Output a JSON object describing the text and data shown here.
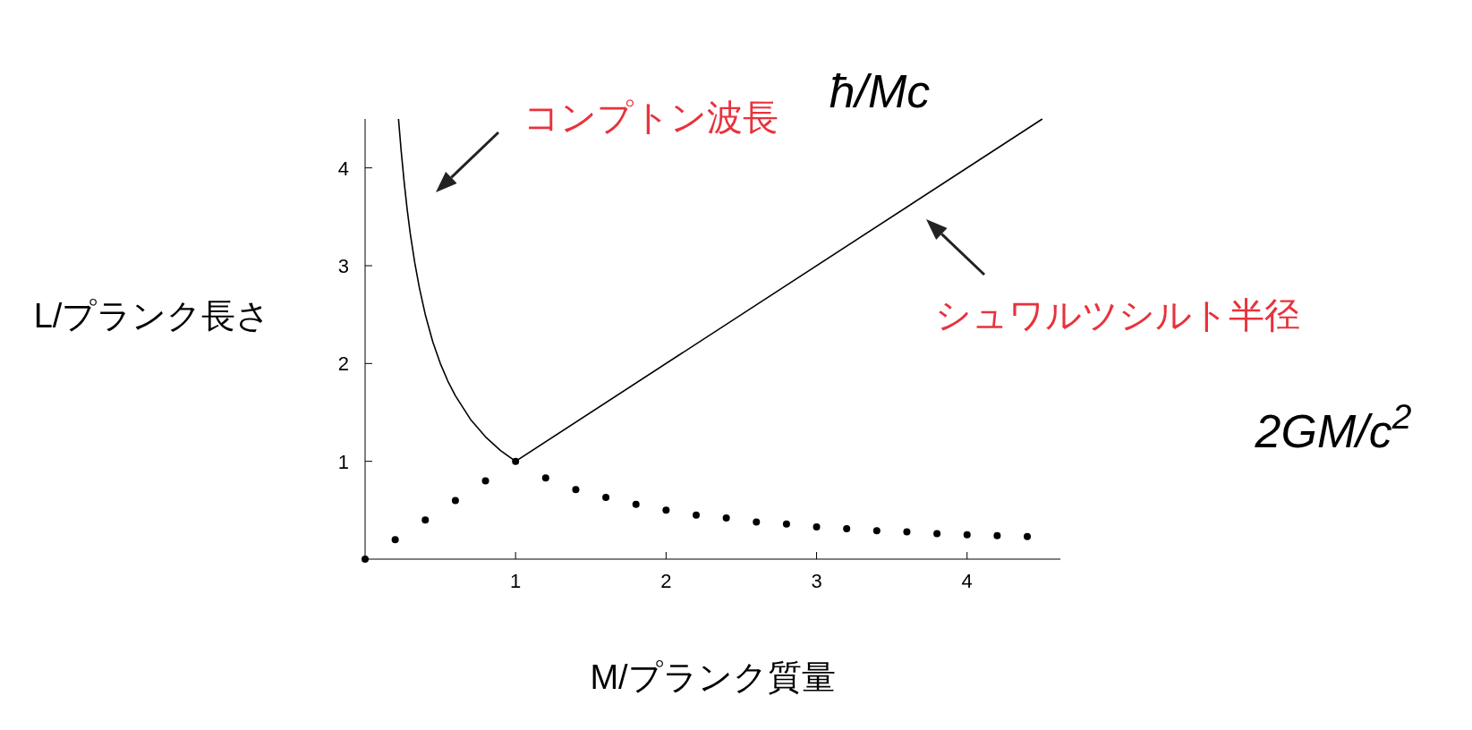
{
  "chart_data": {
    "type": "line",
    "xlabel": "M/プランク質量",
    "ylabel": "L/プランク長さ",
    "xlim": [
      0,
      4.62
    ],
    "ylim": [
      0,
      4.5
    ],
    "xticks": [
      1,
      2,
      3,
      4
    ],
    "yticks": [
      1,
      2,
      3,
      4
    ],
    "series": [
      {
        "color": "#000000",
        "marker": "none",
        "x": [
          0.222,
          0.24,
          0.26,
          0.28,
          0.3,
          0.33,
          0.36,
          0.4,
          0.45,
          0.5,
          0.55,
          0.6,
          0.7,
          0.8,
          0.9,
          1
        ],
        "values": [
          4.5,
          4.17,
          3.85,
          3.57,
          3.33,
          3.03,
          2.78,
          2.5,
          2.22,
          2.0,
          1.82,
          1.67,
          1.43,
          1.25,
          1.11,
          1.0
        ]
      },
      {
        "color": "#000000",
        "marker": "none",
        "x": [
          1,
          4.5
        ],
        "values": [
          1,
          4.5
        ]
      },
      {
        "type": "scatter",
        "color": "#000000",
        "marker": "circle",
        "x": [
          0,
          0.2,
          0.4,
          0.6,
          0.8,
          1,
          1.2,
          1.4,
          1.6,
          1.8,
          2,
          2.2,
          2.4,
          2.6,
          2.8,
          3,
          3.2,
          3.4,
          3.6,
          3.8,
          4,
          4.2,
          4.4
        ],
        "values": [
          0,
          0.2,
          0.4,
          0.6,
          0.8,
          1,
          0.83,
          0.71,
          0.63,
          0.56,
          0.5,
          0.45,
          0.42,
          0.38,
          0.36,
          0.33,
          0.31,
          0.29,
          0.28,
          0.26,
          0.25,
          0.24,
          0.23
        ]
      }
    ],
    "annotations": [
      "コンプトン波長",
      "シュワルツシルト半径",
      "ħ/Mc",
      "2GM/c$^{2}$"
    ]
  }
}
